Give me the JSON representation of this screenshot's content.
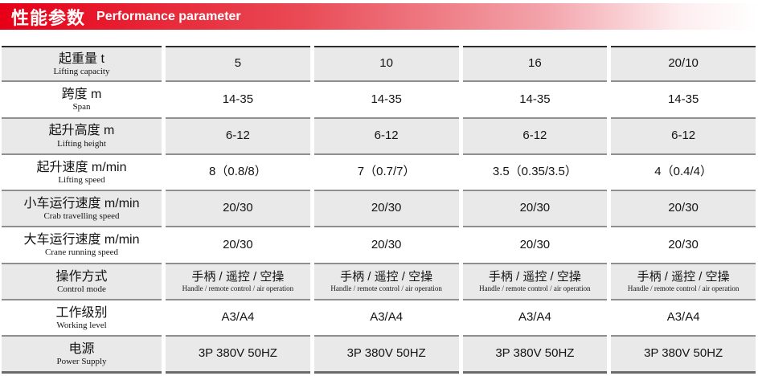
{
  "header": {
    "title_zh": "性能参数",
    "title_en": "Performance parameter"
  },
  "colors": {
    "accent_red": "#e60017",
    "row_alt_bg": "#e9e9e9",
    "top_border": "#2d2d2d",
    "row_border": "#8f8f8f"
  },
  "table": {
    "rows": [
      {
        "label_zh": "起重量 t",
        "label_en": "Lifting capacity",
        "values": [
          {
            "main": "5"
          },
          {
            "main": "10"
          },
          {
            "main": "16"
          },
          {
            "main": "20/10"
          }
        ]
      },
      {
        "label_zh": "跨度 m",
        "label_en": "Span",
        "values": [
          {
            "main": "14-35"
          },
          {
            "main": "14-35"
          },
          {
            "main": "14-35"
          },
          {
            "main": "14-35"
          }
        ]
      },
      {
        "label_zh": "起升高度 m",
        "label_en": "Lifting height",
        "values": [
          {
            "main": "6-12"
          },
          {
            "main": "6-12"
          },
          {
            "main": "6-12"
          },
          {
            "main": "6-12"
          }
        ]
      },
      {
        "label_zh": "起升速度 m/min",
        "label_en": "Lifting speed",
        "values": [
          {
            "main": "8（0.8/8）"
          },
          {
            "main": "7（0.7/7）"
          },
          {
            "main": "3.5（0.35/3.5）"
          },
          {
            "main": "4（0.4/4）"
          }
        ]
      },
      {
        "label_zh": "小车运行速度 m/min",
        "label_en": "Crab travelling speed",
        "values": [
          {
            "main": "20/30"
          },
          {
            "main": "20/30"
          },
          {
            "main": "20/30"
          },
          {
            "main": "20/30"
          }
        ]
      },
      {
        "label_zh": "大车运行速度 m/min",
        "label_en": "Crane running speed",
        "values": [
          {
            "main": "20/30"
          },
          {
            "main": "20/30"
          },
          {
            "main": "20/30"
          },
          {
            "main": "20/30"
          }
        ]
      },
      {
        "label_zh": "操作方式",
        "label_en": "Control mode",
        "values": [
          {
            "main": "手柄 / 遥控 / 空操",
            "sub": "Handle / remote control / air operation"
          },
          {
            "main": "手柄 / 遥控 / 空操",
            "sub": "Handle / remote control / air operation"
          },
          {
            "main": "手柄 / 遥控 / 空操",
            "sub": "Handle / remote control / air operation"
          },
          {
            "main": "手柄 / 遥控 / 空操",
            "sub": "Handle / remote control / air operation"
          }
        ]
      },
      {
        "label_zh": "工作级别",
        "label_en": "Working level",
        "values": [
          {
            "main": "A3/A4"
          },
          {
            "main": "A3/A4"
          },
          {
            "main": "A3/A4"
          },
          {
            "main": "A3/A4"
          }
        ]
      },
      {
        "label_zh": "电源",
        "label_en": "Power Supply",
        "values": [
          {
            "main": "3P 380V 50HZ"
          },
          {
            "main": "3P 380V 50HZ"
          },
          {
            "main": "3P 380V 50HZ"
          },
          {
            "main": "3P 380V 50HZ"
          }
        ]
      }
    ]
  }
}
